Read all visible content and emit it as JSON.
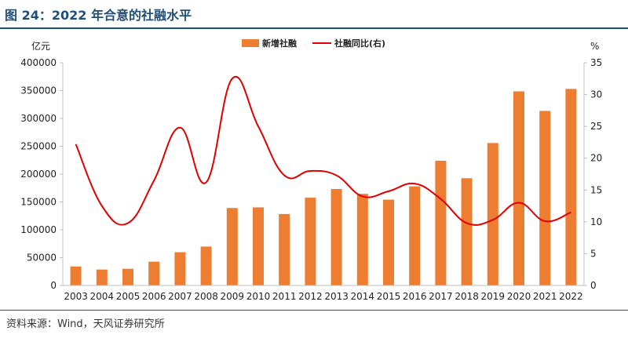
{
  "header": {
    "title": "图 24：2022 年合意的社融水平"
  },
  "footer": {
    "source": "资料来源：Wind，天风证券研究所"
  },
  "colors": {
    "bar": "#ED7D31",
    "line": "#E00000",
    "title": "#1F4E79",
    "axis": "#BFBFBF"
  },
  "chart_data": {
    "type": "bar",
    "categories": [
      "2003",
      "2004",
      "2005",
      "2006",
      "2007",
      "2008",
      "2009",
      "2010",
      "2011",
      "2012",
      "2013",
      "2014",
      "2015",
      "2016",
      "2017",
      "2018",
      "2019",
      "2020",
      "2021",
      "2022"
    ],
    "left_unit": "亿元",
    "right_unit": "%",
    "ylim": [
      0,
      400000
    ],
    "y_ticks": [
      0,
      50000,
      100000,
      150000,
      200000,
      250000,
      300000,
      350000,
      400000
    ],
    "y2lim": [
      0,
      35
    ],
    "y2_ticks": [
      0,
      5,
      10,
      15,
      20,
      25,
      30,
      35
    ],
    "legend_position": "top",
    "grid": false,
    "series": [
      {
        "name": "新增社融",
        "type": "bar",
        "axis": "left",
        "values": [
          34000,
          28600,
          30000,
          42700,
          59700,
          69800,
          139100,
          140200,
          128300,
          157600,
          173200,
          164600,
          154100,
          178000,
          224000,
          192600,
          255800,
          348600,
          313500,
          353000
        ]
      },
      {
        "name": "社融同比(右)",
        "type": "line",
        "axis": "right",
        "values": [
          22.2,
          12.5,
          9.8,
          16.5,
          24.8,
          16.2,
          32.5,
          25.0,
          17.3,
          18.0,
          17.3,
          14.0,
          14.8,
          16.0,
          13.6,
          9.8,
          10.3,
          13.0,
          10.1,
          11.5
        ]
      }
    ]
  }
}
